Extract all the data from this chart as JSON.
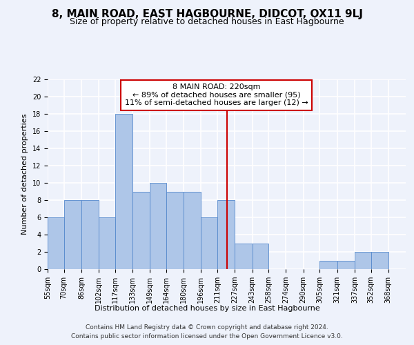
{
  "title": "8, MAIN ROAD, EAST HAGBOURNE, DIDCOT, OX11 9LJ",
  "subtitle": "Size of property relative to detached houses in East Hagbourne",
  "xlabel": "Distribution of detached houses by size in East Hagbourne",
  "ylabel": "Number of detached properties",
  "bin_labels": [
    "55sqm",
    "70sqm",
    "86sqm",
    "102sqm",
    "117sqm",
    "133sqm",
    "149sqm",
    "164sqm",
    "180sqm",
    "196sqm",
    "211sqm",
    "227sqm",
    "243sqm",
    "258sqm",
    "274sqm",
    "290sqm",
    "305sqm",
    "321sqm",
    "337sqm",
    "352sqm",
    "368sqm"
  ],
  "bin_edges": [
    55,
    70,
    86,
    102,
    117,
    133,
    149,
    164,
    180,
    196,
    211,
    227,
    243,
    258,
    274,
    290,
    305,
    321,
    337,
    352,
    368,
    384
  ],
  "counts": [
    6,
    8,
    8,
    6,
    18,
    9,
    10,
    9,
    9,
    6,
    8,
    3,
    3,
    0,
    0,
    0,
    1,
    1,
    2,
    2,
    0
  ],
  "bar_color": "#aec6e8",
  "bar_edge_color": "#5588cc",
  "vline_x": 220,
  "vline_color": "#cc0000",
  "annotation_line1": "8 MAIN ROAD: 220sqm",
  "annotation_line2": "← 89% of detached houses are smaller (95)",
  "annotation_line3": "11% of semi-detached houses are larger (12) →",
  "footer1": "Contains HM Land Registry data © Crown copyright and database right 2024.",
  "footer2": "Contains public sector information licensed under the Open Government Licence v3.0.",
  "ylim": [
    0,
    22
  ],
  "xlim_left": 55,
  "xlim_right": 384,
  "background_color": "#eef2fb",
  "grid_color": "#ffffff",
  "title_fontsize": 11,
  "subtitle_fontsize": 9,
  "ylabel_fontsize": 8,
  "xlabel_fontsize": 8,
  "tick_fontsize": 7,
  "annotation_fontsize": 8,
  "footer_fontsize": 6.5
}
